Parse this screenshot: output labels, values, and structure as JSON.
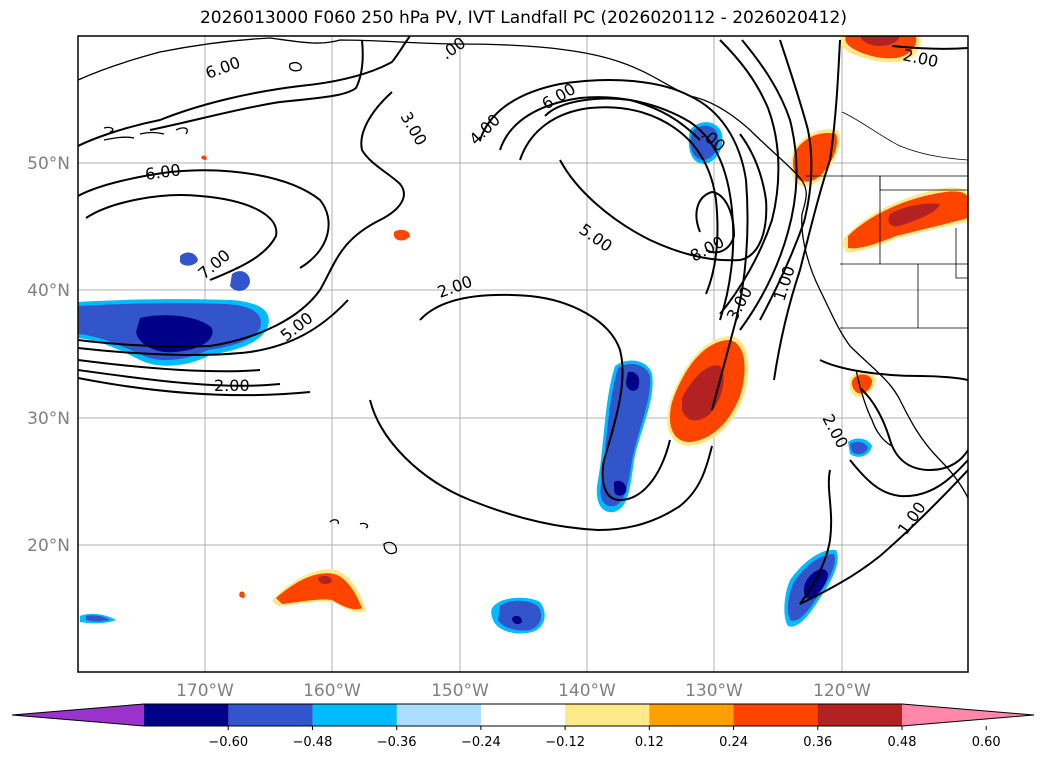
{
  "title": "2026013000 F060 250 hPa PV, IVT Landfall PC (2026020112 - 2026020412)",
  "axes": {
    "lat_labels": [
      "50°N",
      "40°N",
      "30°N",
      "20°N"
    ],
    "lon_labels": [
      "170°W",
      "160°W",
      "150°W",
      "140°W",
      "130°W",
      "120°W"
    ]
  },
  "contour_labels": [
    "6.00",
    "6.00",
    ".00",
    "3.00",
    "4.00",
    "6.00",
    ".00",
    "7.00",
    "5.00",
    "2.00",
    "5.00",
    "2.00",
    "8.00",
    "3.00",
    "1.00",
    "2.00",
    "1.00",
    "2.00"
  ],
  "colorbar": {
    "ticks": [
      "−0.60",
      "−0.48",
      "−0.36",
      "−0.24",
      "−0.12",
      "0.12",
      "0.24",
      "0.36",
      "0.48",
      "0.60"
    ],
    "colors": [
      "#9933cc",
      "#000088",
      "#3355cc",
      "#00bbff",
      "#aaddff",
      "#ffffff",
      "#ffe888",
      "#ffa000",
      "#ff4400",
      "#b22222",
      "#ff88aa"
    ]
  },
  "colors": {
    "neg_strong": "#000088",
    "neg_mid": "#3355cc",
    "neg_light": "#00bbff",
    "pos_light": "#ffa000",
    "pos_mid": "#ff4400",
    "pos_strong": "#b22222"
  }
}
